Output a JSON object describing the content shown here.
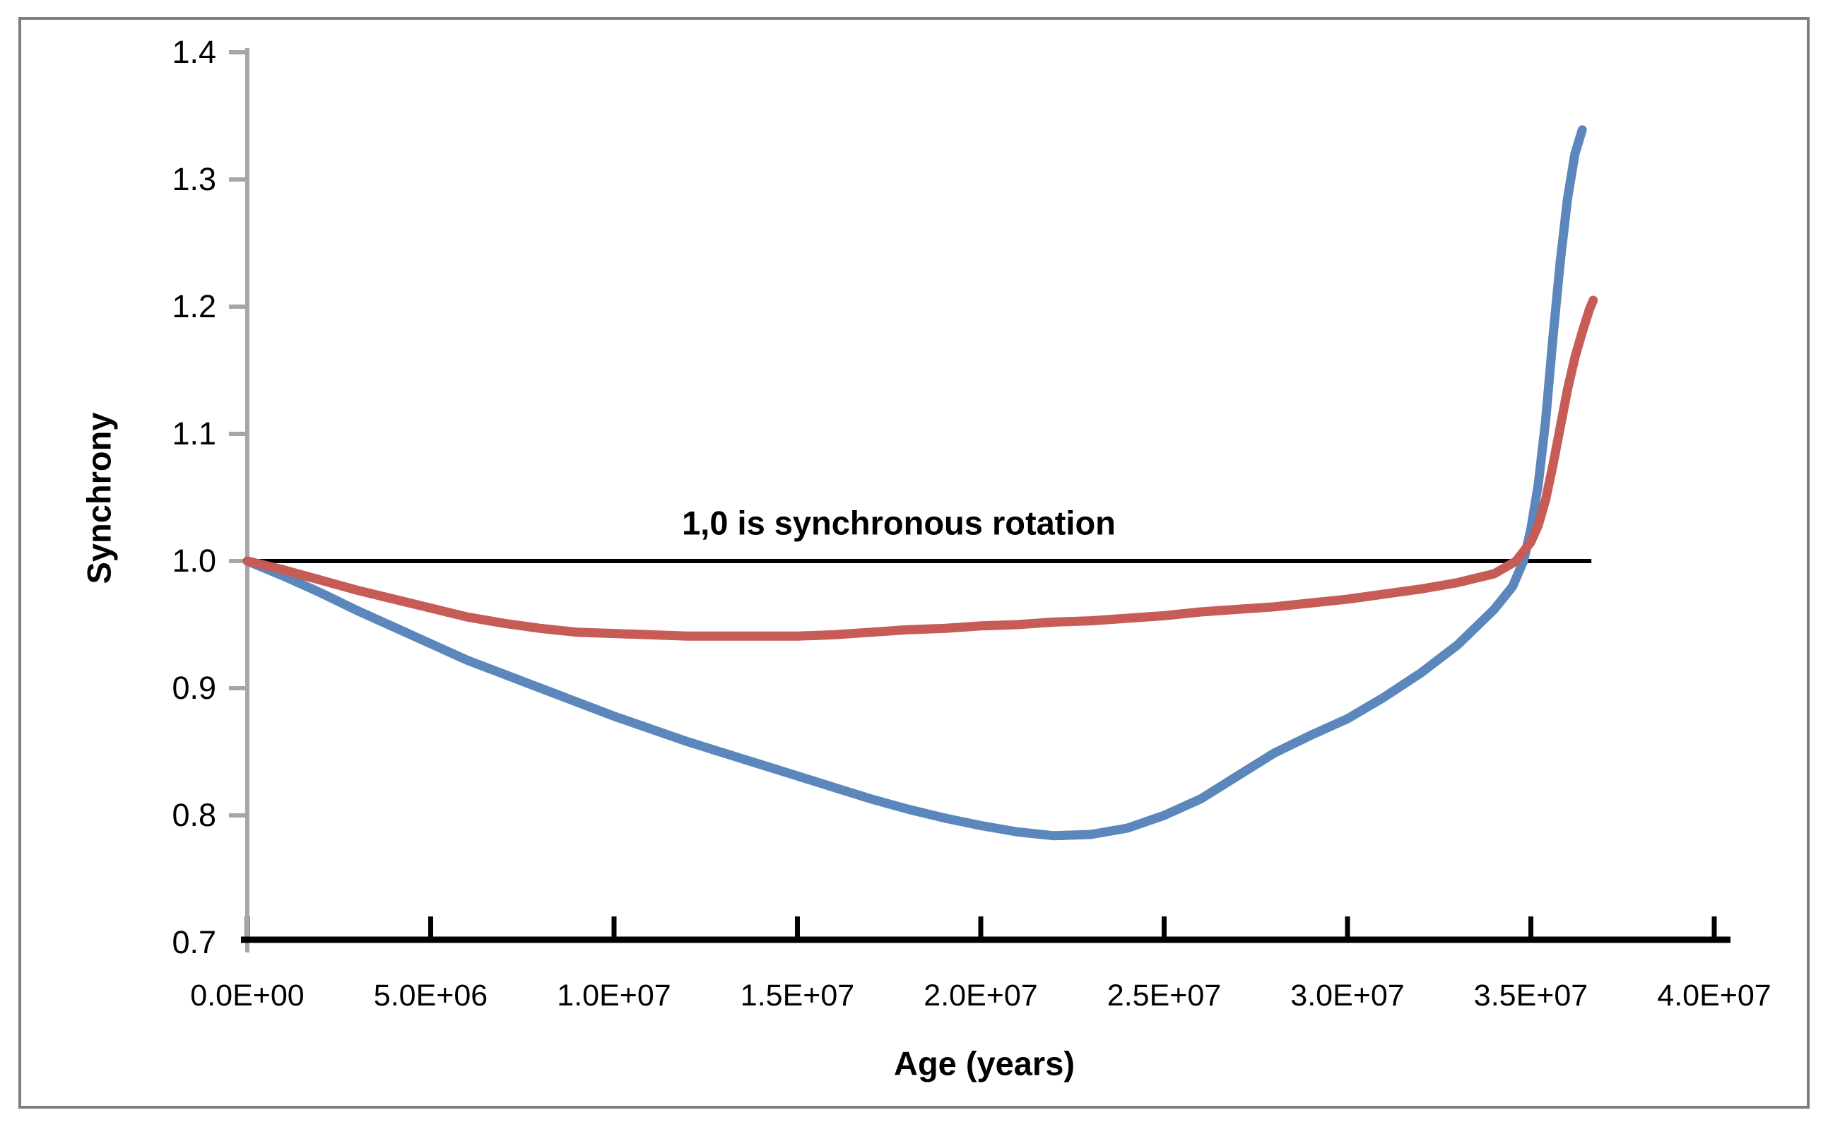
{
  "figure": {
    "background": "#ffffff",
    "frame_border_color": "#7d7d7d"
  },
  "annotation": {
    "text": "1,0 is synchronous rotation"
  },
  "chart_data": {
    "type": "line",
    "title": "",
    "xlabel": "Age (years)",
    "ylabel": "Synchrony",
    "xlim": [
      0,
      40000000
    ],
    "ylim": [
      0.7,
      1.4
    ],
    "grid": false,
    "legend": "none",
    "x_axis_color": "#000000",
    "y_axis_color": "#a6a6a6",
    "x_ticks": [
      {
        "value": 0,
        "label": "0.0E+00"
      },
      {
        "value": 5000000,
        "label": "5.0E+06"
      },
      {
        "value": 10000000,
        "label": "1.0E+07"
      },
      {
        "value": 15000000,
        "label": "1.5E+07"
      },
      {
        "value": 20000000,
        "label": "2.0E+07"
      },
      {
        "value": 25000000,
        "label": "2.5E+07"
      },
      {
        "value": 30000000,
        "label": "3.0E+07"
      },
      {
        "value": 35000000,
        "label": "3.5E+07"
      },
      {
        "value": 40000000,
        "label": "4.0E+07"
      }
    ],
    "y_ticks": [
      {
        "value": 0.7,
        "label": "0.7"
      },
      {
        "value": 0.8,
        "label": "0.8"
      },
      {
        "value": 0.9,
        "label": "0.9"
      },
      {
        "value": 1.0,
        "label": "1.0"
      },
      {
        "value": 1.1,
        "label": "1.1"
      },
      {
        "value": 1.2,
        "label": "1.2"
      },
      {
        "value": 1.3,
        "label": "1.3"
      },
      {
        "value": 1.4,
        "label": "1.4"
      }
    ],
    "reference_line": {
      "y": 1.0,
      "x_start": 0,
      "x_end": 36650000,
      "color": "#000000",
      "label": "1,0 is synchronous rotation"
    },
    "series": [
      {
        "name": "series-1-blue",
        "color": "#5b87bd",
        "points": [
          [
            0,
            1.0
          ],
          [
            1000000,
            0.988
          ],
          [
            2000000,
            0.975
          ],
          [
            3000000,
            0.961
          ],
          [
            4000000,
            0.948
          ],
          [
            5000000,
            0.935
          ],
          [
            6000000,
            0.922
          ],
          [
            7000000,
            0.911
          ],
          [
            8000000,
            0.9
          ],
          [
            9000000,
            0.889
          ],
          [
            10000000,
            0.878
          ],
          [
            11000000,
            0.868
          ],
          [
            12000000,
            0.858
          ],
          [
            13000000,
            0.849
          ],
          [
            14000000,
            0.84
          ],
          [
            15000000,
            0.831
          ],
          [
            16000000,
            0.822
          ],
          [
            17000000,
            0.813
          ],
          [
            18000000,
            0.805
          ],
          [
            19000000,
            0.798
          ],
          [
            20000000,
            0.792
          ],
          [
            21000000,
            0.787
          ],
          [
            22000000,
            0.784
          ],
          [
            23000000,
            0.785
          ],
          [
            24000000,
            0.79
          ],
          [
            25000000,
            0.8
          ],
          [
            26000000,
            0.813
          ],
          [
            27000000,
            0.831
          ],
          [
            28000000,
            0.849
          ],
          [
            29000000,
            0.863
          ],
          [
            30000000,
            0.876
          ],
          [
            31000000,
            0.893
          ],
          [
            32000000,
            0.912
          ],
          [
            33000000,
            0.934
          ],
          [
            34000000,
            0.962
          ],
          [
            34500000,
            0.98
          ],
          [
            34800000,
            1.0
          ],
          [
            35000000,
            1.025
          ],
          [
            35200000,
            1.06
          ],
          [
            35400000,
            1.11
          ],
          [
            35600000,
            1.175
          ],
          [
            35800000,
            1.235
          ],
          [
            36000000,
            1.285
          ],
          [
            36200000,
            1.32
          ],
          [
            36400000,
            1.339
          ]
        ]
      },
      {
        "name": "series-2-red",
        "color": "#c75b55",
        "points": [
          [
            0,
            1.0
          ],
          [
            1000000,
            0.993
          ],
          [
            2000000,
            0.985
          ],
          [
            3000000,
            0.977
          ],
          [
            4000000,
            0.97
          ],
          [
            5000000,
            0.963
          ],
          [
            6000000,
            0.956
          ],
          [
            7000000,
            0.951
          ],
          [
            8000000,
            0.947
          ],
          [
            9000000,
            0.944
          ],
          [
            10000000,
            0.943
          ],
          [
            11000000,
            0.942
          ],
          [
            12000000,
            0.941
          ],
          [
            13000000,
            0.941
          ],
          [
            14000000,
            0.941
          ],
          [
            15000000,
            0.941
          ],
          [
            16000000,
            0.942
          ],
          [
            17000000,
            0.944
          ],
          [
            18000000,
            0.946
          ],
          [
            19000000,
            0.947
          ],
          [
            20000000,
            0.949
          ],
          [
            21000000,
            0.95
          ],
          [
            22000000,
            0.952
          ],
          [
            23000000,
            0.953
          ],
          [
            24000000,
            0.955
          ],
          [
            25000000,
            0.957
          ],
          [
            26000000,
            0.96
          ],
          [
            27000000,
            0.962
          ],
          [
            28000000,
            0.964
          ],
          [
            29000000,
            0.967
          ],
          [
            30000000,
            0.97
          ],
          [
            31000000,
            0.974
          ],
          [
            32000000,
            0.978
          ],
          [
            33000000,
            0.983
          ],
          [
            34000000,
            0.99
          ],
          [
            34600000,
            1.0
          ],
          [
            35000000,
            1.015
          ],
          [
            35200000,
            1.028
          ],
          [
            35400000,
            1.048
          ],
          [
            35600000,
            1.075
          ],
          [
            35800000,
            1.105
          ],
          [
            36000000,
            1.135
          ],
          [
            36200000,
            1.16
          ],
          [
            36400000,
            1.18
          ],
          [
            36600000,
            1.198
          ],
          [
            36700000,
            1.205
          ]
        ]
      }
    ]
  }
}
